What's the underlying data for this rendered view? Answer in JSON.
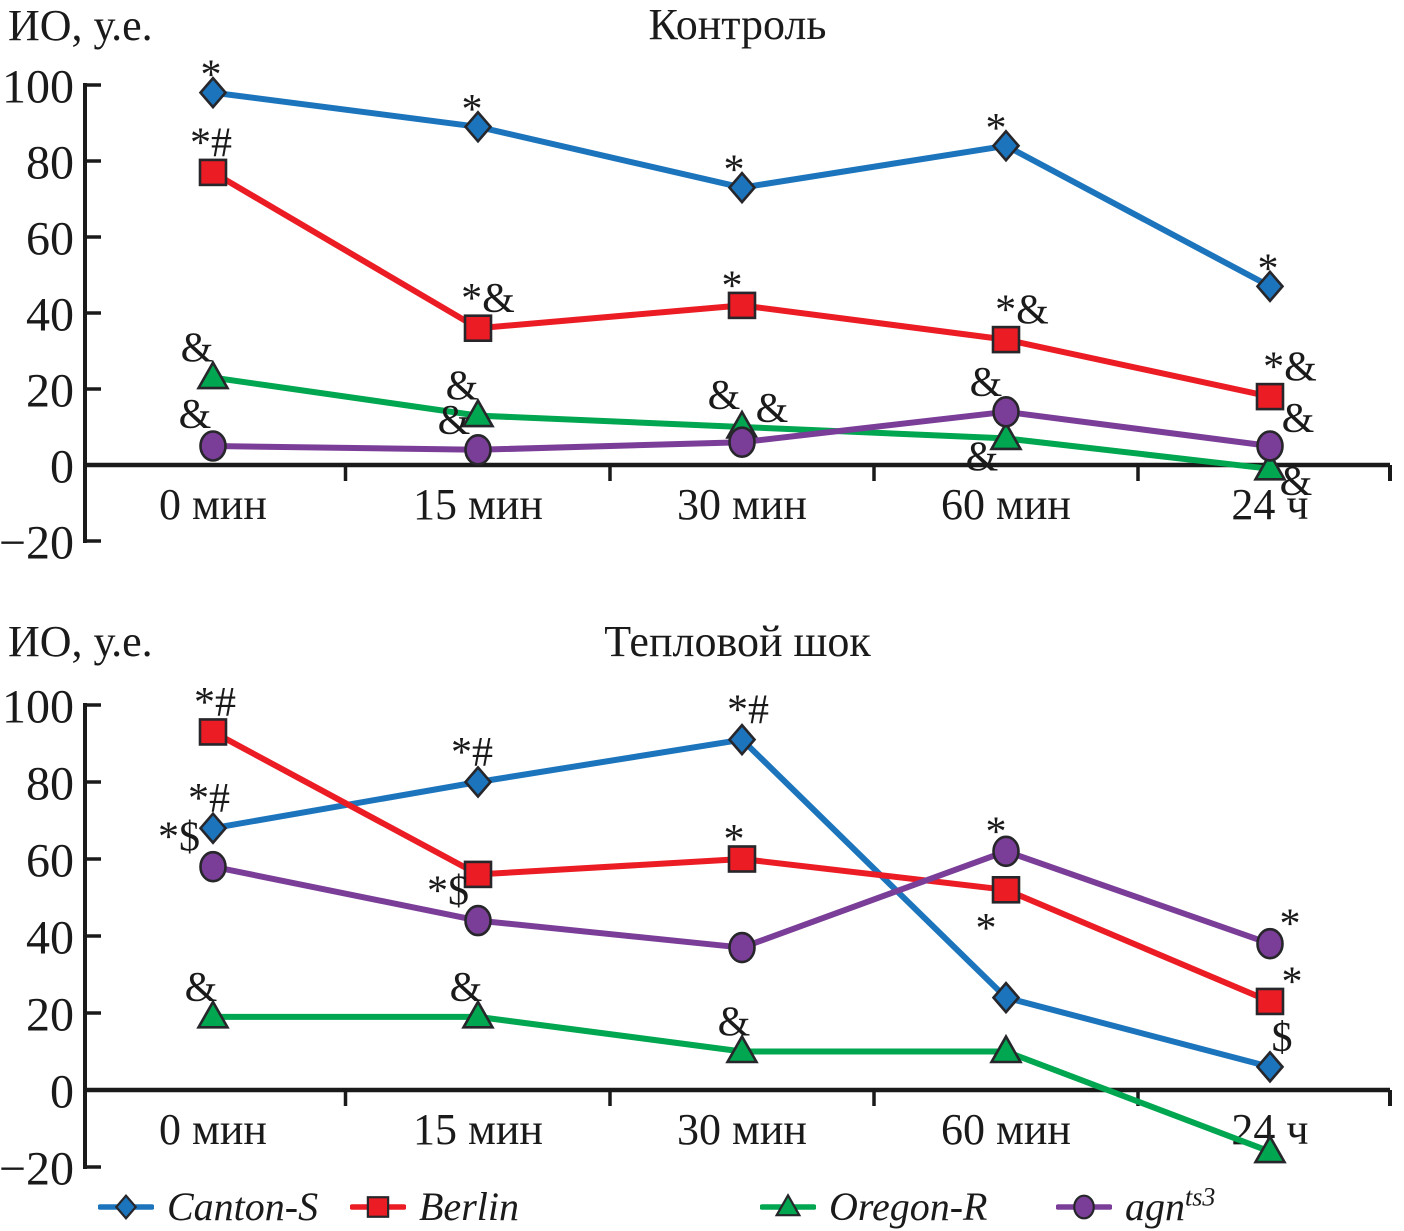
{
  "figure": {
    "background": "#ffffff",
    "axis_color": "#1a1a1a",
    "marker_outline": "#26262b"
  },
  "legend": {
    "position": "bottom",
    "items": [
      {
        "label": "Canton-S",
        "sup": "",
        "color": "#1C75BC",
        "marker": "diamond"
      },
      {
        "label": "Berlin",
        "sup": "",
        "color": "#EC1C24",
        "marker": "square"
      },
      {
        "label": "Oregon-R",
        "sup": "",
        "color": "#00A650",
        "marker": "triangle"
      },
      {
        "label": "agn",
        "sup": "ts3",
        "color": "#7B3E98",
        "marker": "circle"
      }
    ]
  },
  "chart_data": [
    {
      "type": "line",
      "title": "Контроль",
      "ylabel": "ИО, у.е.",
      "xlabel": "",
      "grid": false,
      "categories": [
        "0 мин",
        "15 мин",
        "30 мин",
        "60 мин",
        "24 ч"
      ],
      "ylim": [
        -20,
        100
      ],
      "yticks": [
        100,
        80,
        60,
        40,
        20,
        0,
        -20
      ],
      "series": [
        {
          "name": "Canton-S",
          "color": "#1C75BC",
          "marker": "diamond",
          "values": [
            98,
            89,
            73,
            84,
            47
          ],
          "annotations": [
            {
              "text": "*",
              "dx": -2,
              "dy": -4
            },
            {
              "text": "*",
              "dx": -6,
              "dy": -4
            },
            {
              "text": "*",
              "dx": -8,
              "dy": -4
            },
            {
              "text": "*",
              "dx": -10,
              "dy": -4
            },
            {
              "text": "*",
              "dx": -2,
              "dy": -4
            }
          ]
        },
        {
          "name": "Berlin",
          "color": "#EC1C24",
          "marker": "square",
          "values": [
            77,
            36,
            42,
            33,
            18
          ],
          "annotations": [
            {
              "text": "*#",
              "dx": -2,
              "dy": -16
            },
            {
              "text": "*&",
              "dx": 10,
              "dy": -16
            },
            {
              "text": "*",
              "dx": -10,
              "dy": -6
            },
            {
              "text": "*&",
              "dx": 16,
              "dy": -16
            },
            {
              "text": "*&",
              "dx": 20,
              "dy": -16
            }
          ]
        },
        {
          "name": "Oregon-R",
          "color": "#00A650",
          "marker": "triangle",
          "values": [
            23,
            13,
            10,
            7,
            -1
          ],
          "annotations": [
            {
              "text": "&",
              "dx": -16,
              "dy": -16
            },
            {
              "text": "&",
              "dx": -16,
              "dy": -16
            },
            {
              "text": "&",
              "dx": -18,
              "dy": -18
            },
            {
              "text": "&",
              "dx": -24,
              "dy": 32
            },
            {
              "text": "&",
              "dx": 26,
              "dy": 26
            }
          ]
        },
        {
          "name": "agn ts3",
          "color": "#7B3E98",
          "marker": "circle",
          "values": [
            5,
            4,
            6,
            14,
            5
          ],
          "annotations": [
            {
              "text": "&",
              "dx": -18,
              "dy": -18
            },
            {
              "text": "&",
              "dx": -24,
              "dy": -16
            },
            {
              "text": "&",
              "dx": 30,
              "dy": -20
            },
            {
              "text": "&",
              "dx": -20,
              "dy": -16
            },
            {
              "text": "&",
              "dx": 28,
              "dy": -14
            }
          ]
        }
      ]
    },
    {
      "type": "line",
      "title": "Тепловой шок",
      "ylabel": "ИО, у.е.",
      "xlabel": "",
      "grid": false,
      "categories": [
        "0 мин",
        "15 мин",
        "30 мин",
        "60 мин",
        "24 ч"
      ],
      "ylim": [
        -20,
        100
      ],
      "yticks": [
        100,
        80,
        60,
        40,
        20,
        0,
        -20
      ],
      "series": [
        {
          "name": "Canton-S",
          "color": "#1C75BC",
          "marker": "diamond",
          "values": [
            68,
            80,
            91,
            24,
            6
          ],
          "annotations": [
            {
              "text": "*#",
              "dx": -4,
              "dy": -16
            },
            {
              "text": "*#",
              "dx": -6,
              "dy": -16
            },
            {
              "text": "*#",
              "dx": 6,
              "dy": -16
            },
            null,
            {
              "text": "$",
              "dx": 12,
              "dy": -16
            }
          ]
        },
        {
          "name": "Berlin",
          "color": "#EC1C24",
          "marker": "square",
          "values": [
            93,
            56,
            60,
            52,
            23
          ],
          "annotations": [
            {
              "text": "*#",
              "dx": 2,
              "dy": -16
            },
            null,
            {
              "text": "*",
              "dx": -8,
              "dy": -6
            },
            {
              "text": "*",
              "dx": -20,
              "dy": 52
            },
            {
              "text": "*",
              "dx": 22,
              "dy": -6
            }
          ]
        },
        {
          "name": "Oregon-R",
          "color": "#00A650",
          "marker": "triangle",
          "values": [
            19,
            19,
            10,
            10,
            -16
          ],
          "annotations": [
            {
              "text": "&",
              "dx": -12,
              "dy": -16
            },
            {
              "text": "&",
              "dx": -12,
              "dy": -16
            },
            {
              "text": "&",
              "dx": -8,
              "dy": -16
            },
            null,
            null
          ]
        },
        {
          "name": "agn ts3",
          "color": "#7B3E98",
          "marker": "circle",
          "values": [
            58,
            44,
            37,
            62,
            38
          ],
          "annotations": [
            {
              "text": "*$",
              "dx": -34,
              "dy": -16
            },
            {
              "text": "*$",
              "dx": -30,
              "dy": -16
            },
            null,
            {
              "text": "*",
              "dx": -10,
              "dy": -6
            },
            {
              "text": "*",
              "dx": 20,
              "dy": -6
            }
          ]
        }
      ]
    }
  ]
}
